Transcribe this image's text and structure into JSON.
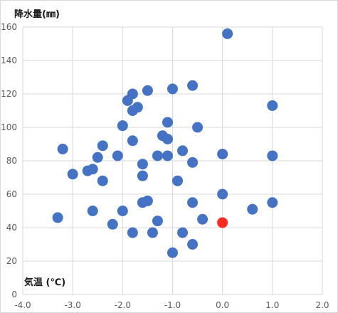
{
  "chart_data": {
    "type": "scatter",
    "ylabel": "降水量(㎜)",
    "xlabel": "気温 (℃)",
    "xlim": [
      -4.0,
      2.0
    ],
    "ylim": [
      0,
      160
    ],
    "xticks": [
      "-4.0",
      "-3.0",
      "-2.0",
      "-1.0",
      "0.0",
      "1.0",
      "2.0"
    ],
    "yticks": [
      "0",
      "20",
      "40",
      "60",
      "80",
      "100",
      "120",
      "140",
      "160"
    ],
    "grid": true,
    "colors": {
      "series": "#4472C4",
      "highlight": "#FF2A1F",
      "grid": "#d9d9d9"
    },
    "series": [
      {
        "color": "#4472C4",
        "points": [
          {
            "x": 0.1,
            "y": 156
          },
          {
            "x": -0.6,
            "y": 125
          },
          {
            "x": -1.0,
            "y": 123
          },
          {
            "x": -1.5,
            "y": 122
          },
          {
            "x": -1.8,
            "y": 120
          },
          {
            "x": -1.9,
            "y": 116
          },
          {
            "x": -1.7,
            "y": 112
          },
          {
            "x": -1.8,
            "y": 110
          },
          {
            "x": 1.0,
            "y": 113
          },
          {
            "x": -1.1,
            "y": 103
          },
          {
            "x": -2.0,
            "y": 101
          },
          {
            "x": -0.5,
            "y": 100
          },
          {
            "x": -1.2,
            "y": 95
          },
          {
            "x": -1.1,
            "y": 93
          },
          {
            "x": -1.8,
            "y": 92
          },
          {
            "x": -3.2,
            "y": 87
          },
          {
            "x": -2.4,
            "y": 89
          },
          {
            "x": -0.8,
            "y": 86
          },
          {
            "x": 0.0,
            "y": 84
          },
          {
            "x": -2.1,
            "y": 83
          },
          {
            "x": -2.5,
            "y": 82
          },
          {
            "x": -1.3,
            "y": 83
          },
          {
            "x": -1.1,
            "y": 83
          },
          {
            "x": 1.0,
            "y": 83
          },
          {
            "x": -0.6,
            "y": 79
          },
          {
            "x": -1.6,
            "y": 78
          },
          {
            "x": -2.6,
            "y": 75
          },
          {
            "x": -2.7,
            "y": 74
          },
          {
            "x": -3.0,
            "y": 72
          },
          {
            "x": -1.6,
            "y": 71
          },
          {
            "x": -0.9,
            "y": 68
          },
          {
            "x": -2.4,
            "y": 68
          },
          {
            "x": 0.0,
            "y": 60
          },
          {
            "x": -1.5,
            "y": 56
          },
          {
            "x": -1.6,
            "y": 55
          },
          {
            "x": -0.6,
            "y": 55
          },
          {
            "x": 1.0,
            "y": 55
          },
          {
            "x": 0.6,
            "y": 51
          },
          {
            "x": -2.6,
            "y": 50
          },
          {
            "x": -2.0,
            "y": 50
          },
          {
            "x": -3.3,
            "y": 46
          },
          {
            "x": -0.4,
            "y": 45
          },
          {
            "x": -1.3,
            "y": 44
          },
          {
            "x": -2.2,
            "y": 42
          },
          {
            "x": -1.8,
            "y": 37
          },
          {
            "x": -1.4,
            "y": 37
          },
          {
            "x": -0.8,
            "y": 37
          },
          {
            "x": -0.6,
            "y": 30
          },
          {
            "x": -1.0,
            "y": 25
          }
        ]
      },
      {
        "color": "#FF2A1F",
        "points": [
          {
            "x": 0.0,
            "y": 43
          }
        ]
      }
    ]
  }
}
